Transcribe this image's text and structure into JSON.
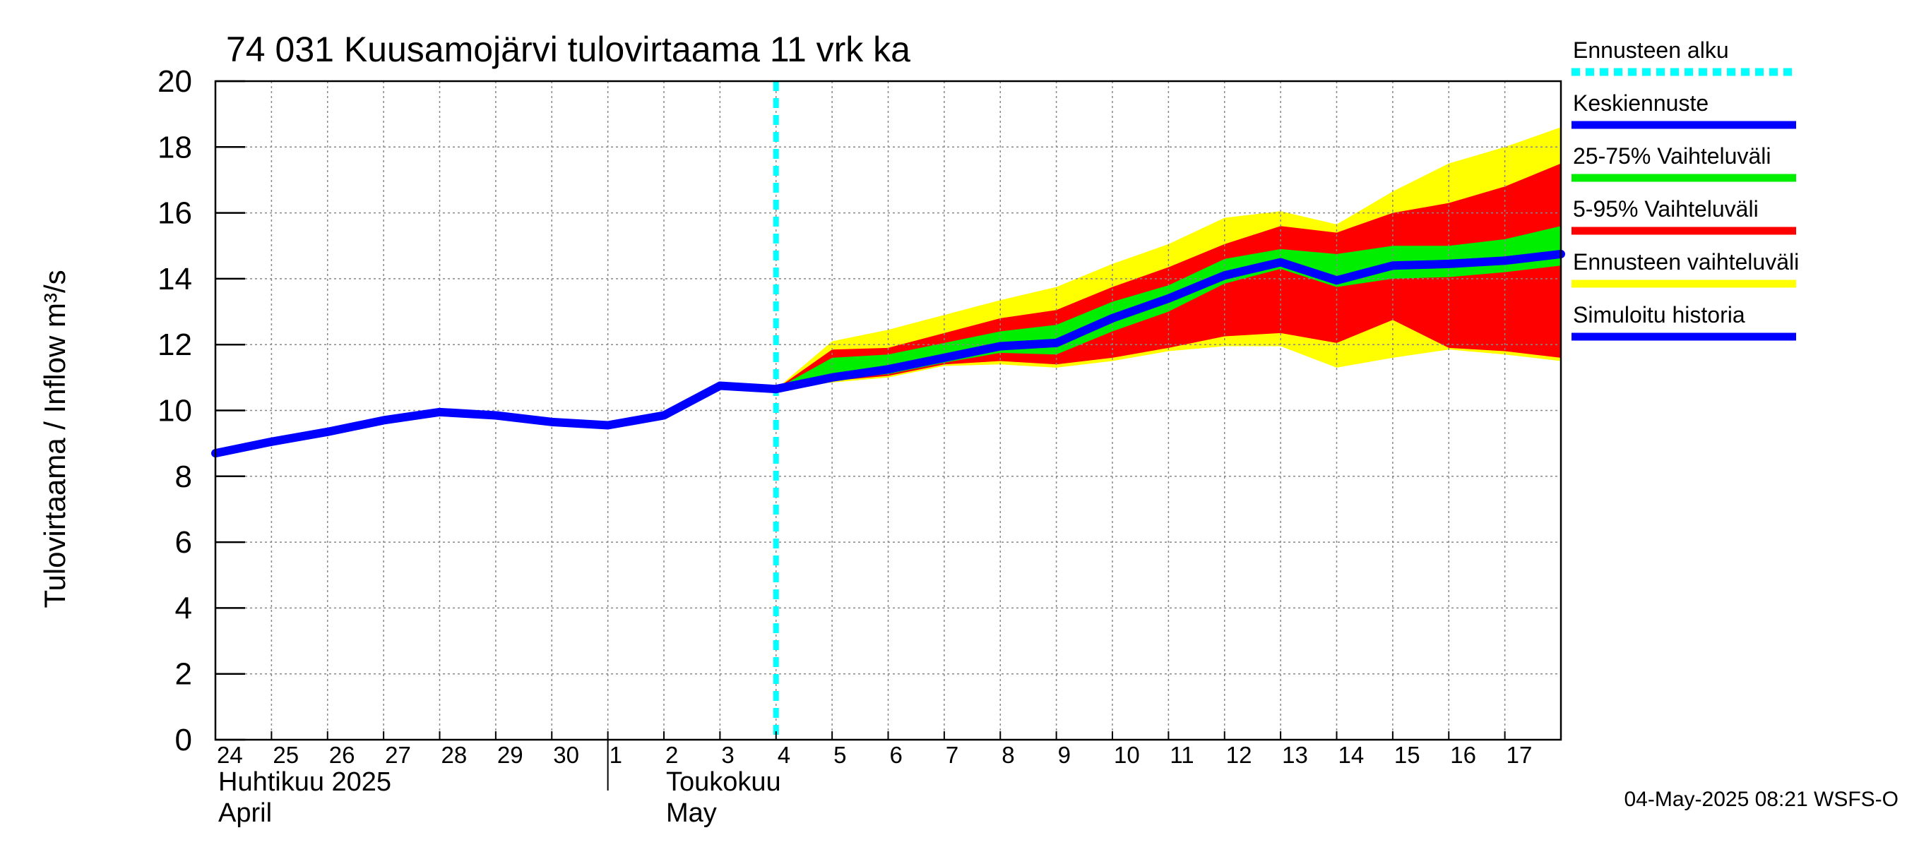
{
  "chart_data": {
    "type": "area",
    "title": "74 031 Kuusamojärvi tulovirtaama 11 vrk ka",
    "ylabel": "Tulovirtaama / Inflow    m³/s",
    "xlabel": "",
    "ylim": [
      0,
      20
    ],
    "yticks": [
      0,
      2,
      4,
      6,
      8,
      10,
      12,
      14,
      16,
      18,
      20
    ],
    "grid": true,
    "x_range": [
      0,
      24
    ],
    "x_tick_labels": [
      "24",
      "25",
      "26",
      "27",
      "28",
      "29",
      "30",
      "1",
      "2",
      "3",
      "4",
      "5",
      "6",
      "7",
      "8",
      "9",
      "10",
      "11",
      "12",
      "13",
      "14",
      "15",
      "16",
      "17"
    ],
    "month_labels": [
      {
        "line1": "Huhtikuu  2025",
        "line2": "April"
      },
      {
        "line1": "Toukokuu",
        "line2": "May"
      }
    ],
    "forecast_start_x": 10,
    "series": [
      {
        "name": "Simuloitu historia",
        "color": "#0000ff",
        "x": [
          0,
          1,
          2,
          3,
          4,
          5,
          6,
          7,
          8,
          9,
          10
        ],
        "values": [
          8.7,
          9.05,
          9.35,
          9.7,
          9.95,
          9.85,
          9.65,
          9.55,
          9.85,
          10.75,
          10.65
        ]
      },
      {
        "name": "Keskiennuste",
        "color": "#0000ff",
        "x": [
          10,
          11,
          12,
          13,
          14,
          15,
          16,
          17,
          18,
          19,
          20,
          21,
          22,
          23,
          24
        ],
        "values": [
          10.65,
          11.0,
          11.25,
          11.6,
          11.95,
          12.05,
          12.8,
          13.4,
          14.1,
          14.5,
          13.95,
          14.4,
          14.45,
          14.55,
          14.75
        ]
      },
      {
        "name": "25-75% Vaihteluväli",
        "color": "#00ee00",
        "x": [
          10,
          11,
          12,
          13,
          14,
          15,
          16,
          17,
          18,
          19,
          20,
          21,
          22,
          23,
          24
        ],
        "lower": [
          10.65,
          10.95,
          11.1,
          11.45,
          11.75,
          11.7,
          12.4,
          13.0,
          13.85,
          14.3,
          13.75,
          14.0,
          14.05,
          14.2,
          14.4
        ],
        "upper": [
          10.65,
          11.6,
          11.7,
          12.05,
          12.4,
          12.6,
          13.3,
          13.8,
          14.6,
          14.9,
          14.75,
          15.0,
          15.0,
          15.2,
          15.6
        ]
      },
      {
        "name": "5-95% Vaihteluväli",
        "color": "#ff0000",
        "x": [
          10,
          11,
          12,
          13,
          14,
          15,
          16,
          17,
          18,
          19,
          20,
          21,
          22,
          23,
          24
        ],
        "lower": [
          10.65,
          10.9,
          11.05,
          11.4,
          11.5,
          11.4,
          11.6,
          11.9,
          12.25,
          12.35,
          12.05,
          12.75,
          11.9,
          11.8,
          11.6
        ],
        "upper": [
          10.65,
          11.85,
          11.9,
          12.35,
          12.8,
          13.05,
          13.75,
          14.35,
          15.05,
          15.6,
          15.4,
          16.0,
          16.3,
          16.8,
          17.5
        ]
      },
      {
        "name": "Ennusteen vaihteluväli",
        "color": "#ffff00",
        "x": [
          10,
          11,
          12,
          13,
          14,
          15,
          16,
          17,
          18,
          19,
          20,
          21,
          22,
          23,
          24
        ],
        "lower": [
          10.65,
          10.85,
          11.0,
          11.35,
          11.4,
          11.3,
          11.5,
          11.8,
          11.95,
          11.95,
          11.3,
          11.6,
          11.85,
          11.7,
          11.5
        ],
        "upper": [
          10.65,
          12.1,
          12.45,
          12.9,
          13.35,
          13.75,
          14.45,
          15.05,
          15.85,
          16.05,
          15.65,
          16.65,
          17.5,
          18.0,
          18.6
        ]
      }
    ],
    "legend": {
      "placement": "right",
      "entries": [
        {
          "label": "Ennusteen alku",
          "color": "#00ffff",
          "style": "dashed"
        },
        {
          "label": "Keskiennuste",
          "color": "#0000ff",
          "style": "solid"
        },
        {
          "label": "25-75% Vaihteluväli",
          "color": "#00ee00",
          "style": "solid"
        },
        {
          "label": "5-95% Vaihteluväli",
          "color": "#ff0000",
          "style": "solid"
        },
        {
          "label": "Ennusteen vaihteluväli",
          "color": "#ffff00",
          "style": "solid"
        },
        {
          "label": "Simuloitu historia",
          "color": "#0000ff",
          "style": "solid"
        }
      ]
    },
    "footer": "04-May-2025 08:21 WSFS-O"
  }
}
